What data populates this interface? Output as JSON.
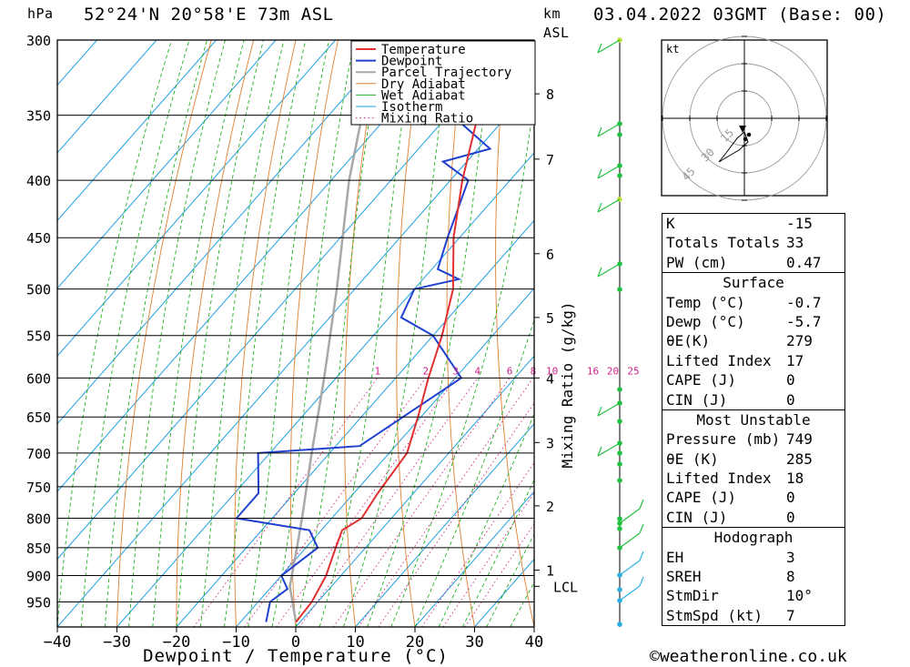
{
  "header": {
    "pressure_unit": "hPa",
    "location": "52°24'N  20°58'E  73m  ASL",
    "height_unit_km": "km",
    "height_unit_asl": "ASL",
    "datetime": "03.04.2022  03GMT  (Base: 00)"
  },
  "chart_data": {
    "type": "skew-t",
    "xlabel": "Dewpoint / Temperature (°C)",
    "ylabel_left": "hPa",
    "y2label": "Mixing Ratio (g/kg)",
    "x_ticks": [
      -40,
      -30,
      -20,
      -10,
      0,
      10,
      20,
      30,
      40
    ],
    "pressure_levels": [
      300,
      350,
      400,
      450,
      500,
      550,
      600,
      650,
      700,
      750,
      800,
      850,
      900,
      950
    ],
    "height_km_labels": [
      {
        "label": "8",
        "p": 335
      },
      {
        "label": "7",
        "p": 383
      },
      {
        "label": "6",
        "p": 465
      },
      {
        "label": "5",
        "p": 530
      },
      {
        "label": "4",
        "p": 600
      },
      {
        "label": "3",
        "p": 685
      },
      {
        "label": "2",
        "p": 780
      },
      {
        "label": "1",
        "p": 890
      },
      {
        "label": "LCL",
        "p": 920
      }
    ],
    "mixing_ratio_labels": [
      "1",
      "2",
      "3",
      "4",
      "6",
      "8",
      "10",
      "16",
      "20",
      "25"
    ],
    "legend": [
      "Temperature",
      "Dewpoint",
      "Parcel Trajectory",
      "Dry Adiabat",
      "Wet Adiabat",
      "Isotherm",
      "Mixing Ratio"
    ],
    "colors": {
      "temperature": "#e03030",
      "dewpoint": "#2040d0",
      "parcel": "#a8a8a8",
      "dry_adiabat": "#e08030",
      "wet_adiabat": "#20b020",
      "isotherm": "#20a0e0",
      "mixing_ratio": "#d0208a"
    },
    "temperature": [
      {
        "p": 990,
        "t": -0.7
      },
      {
        "p": 950,
        "t": -1.0
      },
      {
        "p": 900,
        "t": -2.5
      },
      {
        "p": 850,
        "t": -5.0
      },
      {
        "p": 820,
        "t": -6.5
      },
      {
        "p": 800,
        "t": -5.0
      },
      {
        "p": 760,
        "t": -6.0
      },
      {
        "p": 700,
        "t": -7.0
      },
      {
        "p": 650,
        "t": -10.5
      },
      {
        "p": 600,
        "t": -14.5
      },
      {
        "p": 550,
        "t": -18.5
      },
      {
        "p": 500,
        "t": -23.5
      },
      {
        "p": 450,
        "t": -31.0
      },
      {
        "p": 400,
        "t": -38.0
      },
      {
        "p": 350,
        "t": -45.0
      },
      {
        "p": 300,
        "t": -53.0
      }
    ],
    "dewpoint": [
      {
        "p": 990,
        "t": -5.7
      },
      {
        "p": 950,
        "t": -8.0
      },
      {
        "p": 925,
        "t": -7.0
      },
      {
        "p": 900,
        "t": -10.0
      },
      {
        "p": 850,
        "t": -8.0
      },
      {
        "p": 820,
        "t": -12.0
      },
      {
        "p": 800,
        "t": -26.0
      },
      {
        "p": 760,
        "t": -26.0
      },
      {
        "p": 700,
        "t": -32.0
      },
      {
        "p": 690,
        "t": -16.0
      },
      {
        "p": 650,
        "t": -13.0
      },
      {
        "p": 600,
        "t": -9.0
      },
      {
        "p": 550,
        "t": -20.0
      },
      {
        "p": 530,
        "t": -28.0
      },
      {
        "p": 500,
        "t": -30.0
      },
      {
        "p": 490,
        "t": -24.0
      },
      {
        "p": 480,
        "t": -29.0
      },
      {
        "p": 450,
        "t": -32.0
      },
      {
        "p": 400,
        "t": -37.0
      },
      {
        "p": 385,
        "t": -44.0
      },
      {
        "p": 375,
        "t": -38.0
      },
      {
        "p": 355,
        "t": -47.0
      },
      {
        "p": 340,
        "t": -42.0
      },
      {
        "p": 330,
        "t": -52.0
      },
      {
        "p": 300,
        "t": -55.0
      }
    ],
    "parcel": [
      {
        "p": 990,
        "t": -0.7
      },
      {
        "p": 920,
        "t": -7.0
      },
      {
        "p": 850,
        "t": -11.5
      },
      {
        "p": 800,
        "t": -15.0
      },
      {
        "p": 700,
        "t": -23.0
      },
      {
        "p": 600,
        "t": -32.0
      },
      {
        "p": 500,
        "t": -43.0
      },
      {
        "p": 400,
        "t": -57.0
      },
      {
        "p": 300,
        "t": -73.0
      }
    ],
    "wind_heights_km": [
      0.2,
      0.5,
      0.8,
      1.0,
      1.5,
      2.0,
      2.5,
      3.0,
      3.5,
      4.0,
      5.0,
      6.0,
      7.0,
      8.0,
      9.0
    ]
  },
  "hodograph": {
    "unit": "kt",
    "ring_labels": [
      "15",
      "30",
      "45"
    ]
  },
  "indices": {
    "rows": [
      {
        "label": "K",
        "value": "-15"
      },
      {
        "label": "Totals Totals",
        "value": "33"
      },
      {
        "label": "PW (cm)",
        "value": "0.47"
      }
    ]
  },
  "surface": {
    "title": "Surface",
    "rows": [
      {
        "label": "Temp (°C)",
        "value": "-0.7"
      },
      {
        "label": "Dewp (°C)",
        "value": "-5.7"
      },
      {
        "label": "θE(K)",
        "value": "279"
      },
      {
        "label": "Lifted Index",
        "value": "17"
      },
      {
        "label": "CAPE (J)",
        "value": "0"
      },
      {
        "label": "CIN (J)",
        "value": "0"
      }
    ]
  },
  "most_unstable": {
    "title": "Most Unstable",
    "rows": [
      {
        "label": "Pressure (mb)",
        "value": "749"
      },
      {
        "label": "θE (K)",
        "value": "285"
      },
      {
        "label": "Lifted Index",
        "value": "18"
      },
      {
        "label": "CAPE (J)",
        "value": "0"
      },
      {
        "label": "CIN (J)",
        "value": "0"
      }
    ]
  },
  "hodograph_table": {
    "title": "Hodograph",
    "rows": [
      {
        "label": "EH",
        "value": "3"
      },
      {
        "label": "SREH",
        "value": "8"
      },
      {
        "label": "StmDir",
        "value": "10°"
      },
      {
        "label": "StmSpd (kt)",
        "value": "7"
      }
    ]
  },
  "footer": {
    "credit": "©weatheronline.co.uk"
  }
}
